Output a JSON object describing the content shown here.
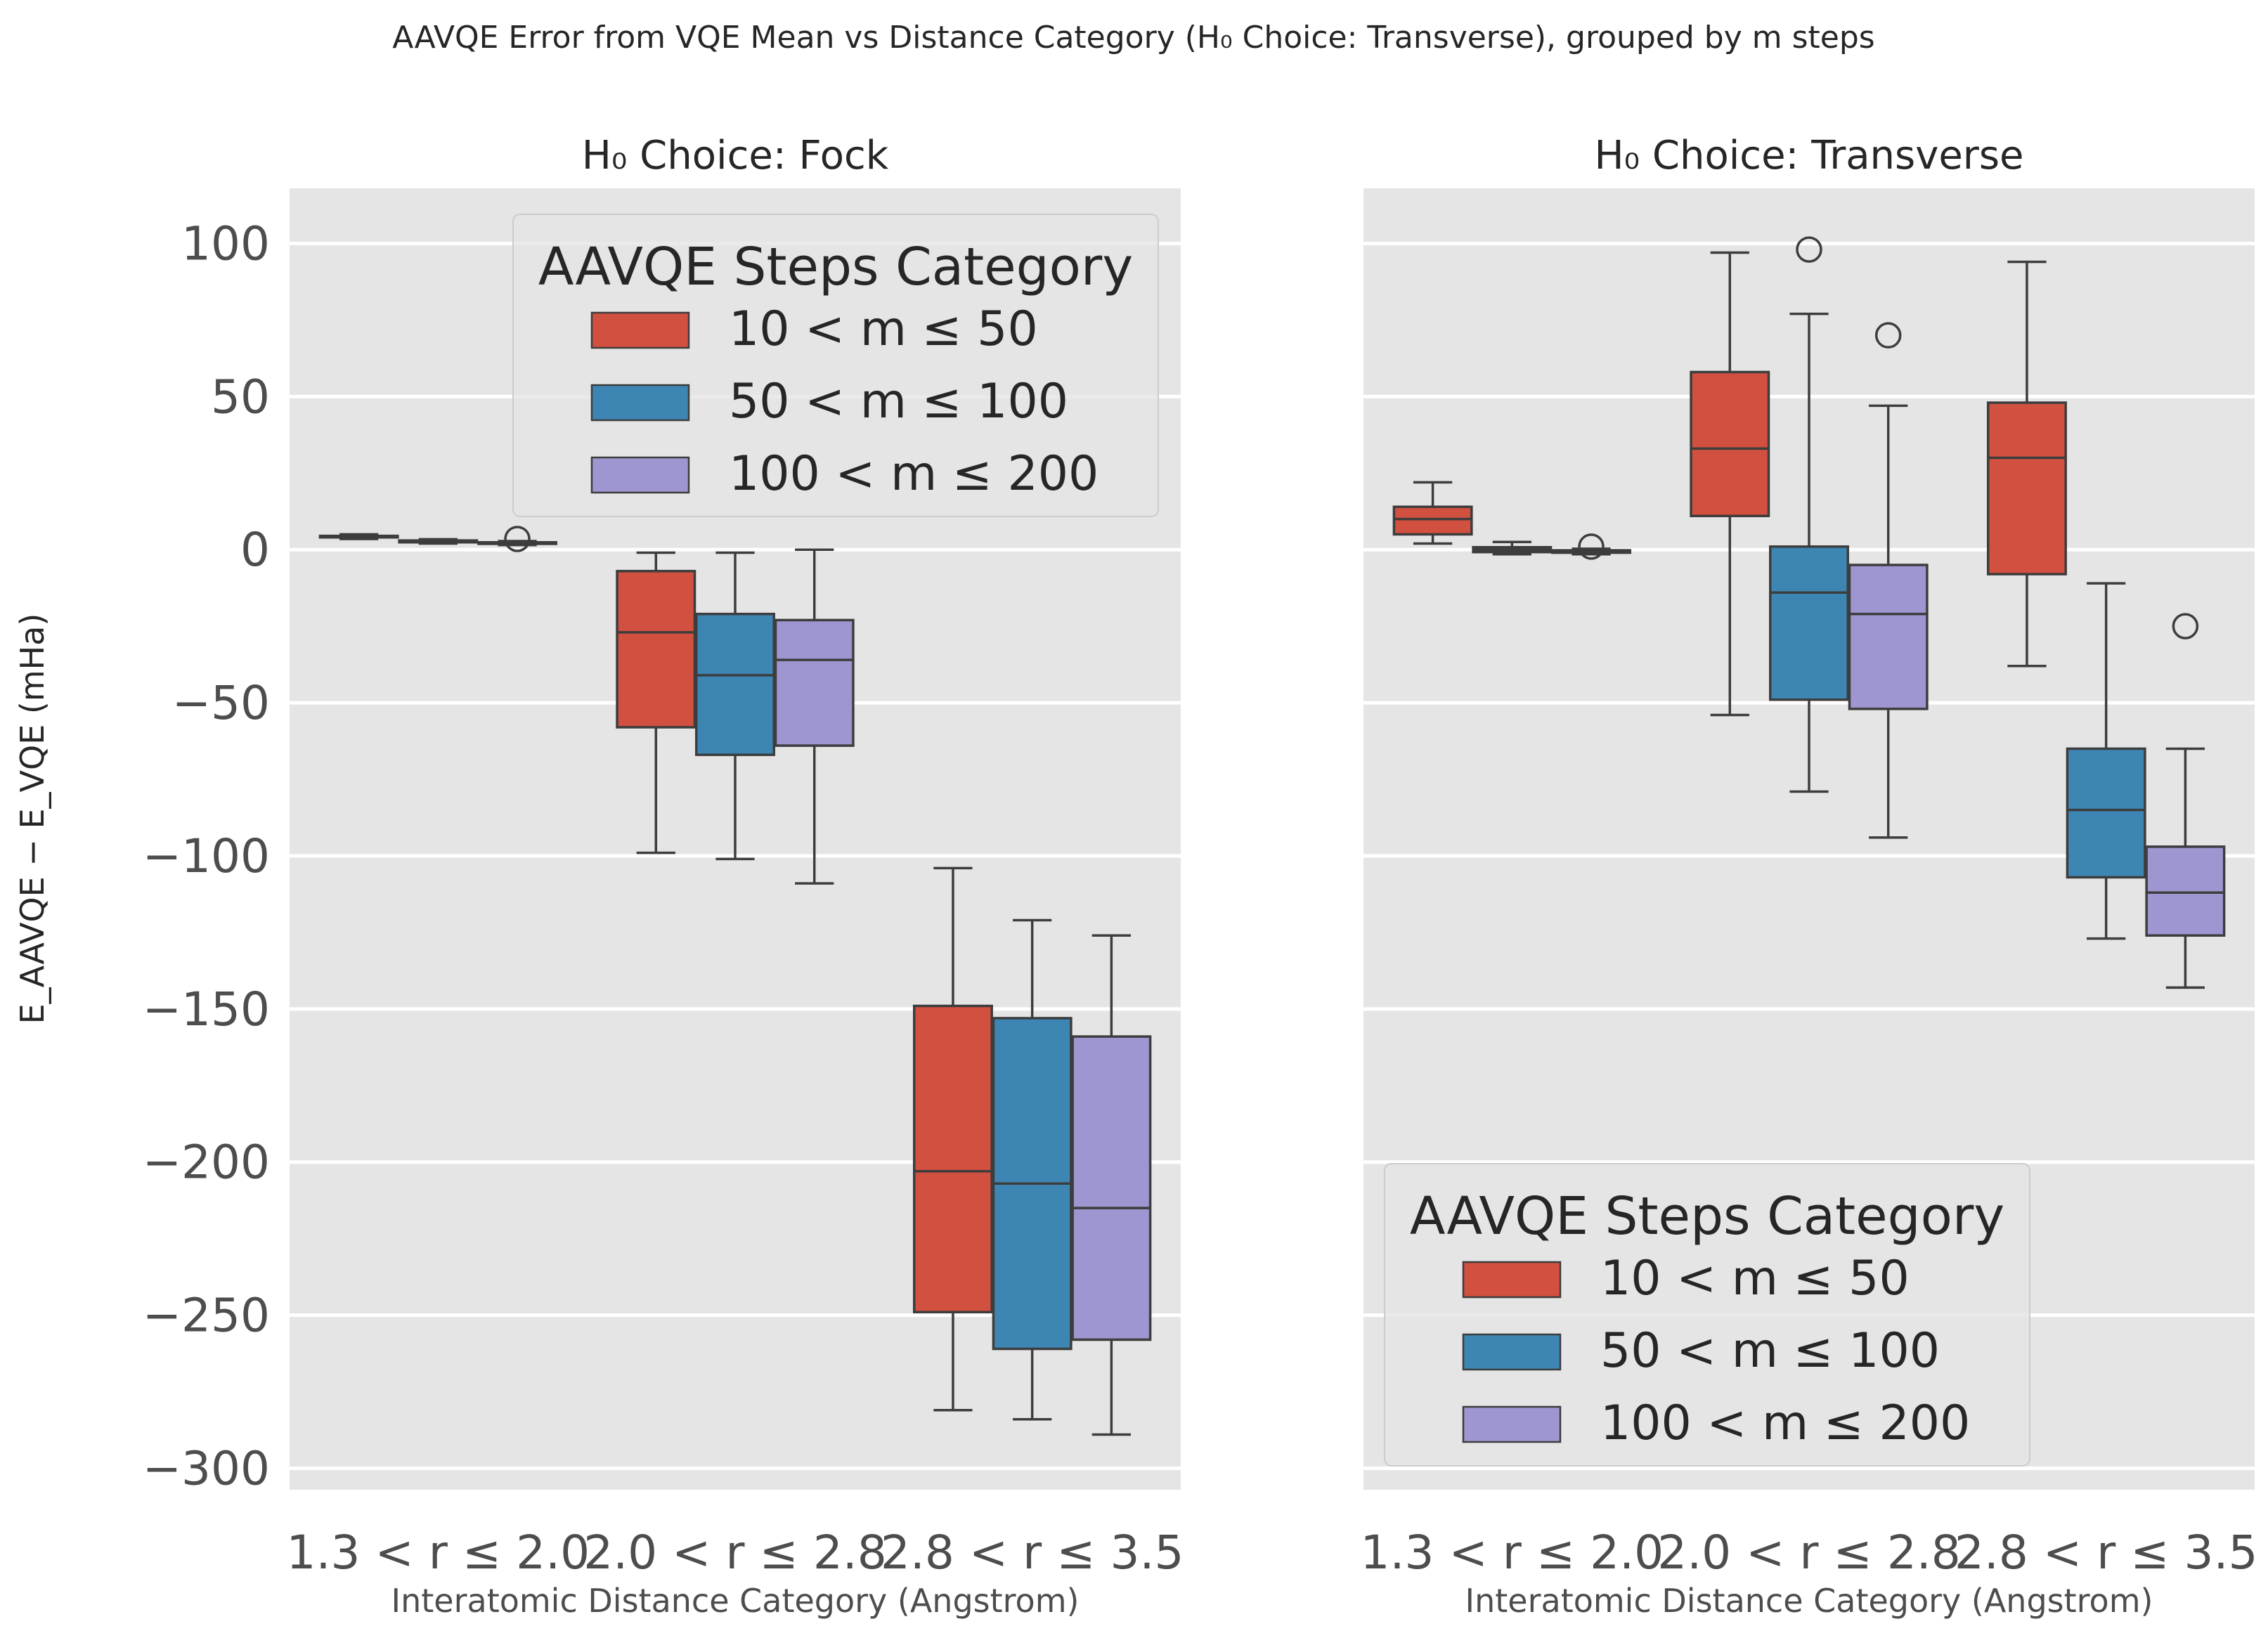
{
  "figure": {
    "suptitle": "AAVQE Error from VQE Mean vs Distance Category (H₀ Choice: Transverse), grouped by m steps",
    "ylabel": "E_AAVQE − E_VQE (mHa)"
  },
  "chart_data": [
    {
      "type": "box",
      "title": "H₀ Choice: Fock",
      "xlabel": "Interatomic Distance Category (Angstrom)",
      "ylabel": "E_AAVQE − E_VQE (mHa)",
      "ylim": [
        -307,
        118
      ],
      "yticks": [
        100,
        50,
        0,
        -50,
        -100,
        -150,
        -200,
        -250,
        -300
      ],
      "ytick_labels": [
        "100",
        "50",
        "0",
        "−50",
        "−100",
        "−150",
        "−200",
        "−250",
        "−300"
      ],
      "categories": [
        "1.3 < r ≤ 2.0",
        "2.0 < r ≤ 2.8",
        "2.8 < r ≤ 3.5"
      ],
      "legend": {
        "title": "AAVQE Steps Category",
        "position": "upper-center"
      },
      "series": [
        {
          "name": "10 < m ≤ 50",
          "color": "#d1503f",
          "boxes": [
            {
              "whislo": 3.5,
              "q1": 4.0,
              "med": 4.2,
              "q3": 4.5,
              "whishi": 5.0,
              "fliers": []
            },
            {
              "whislo": -99,
              "q1": -58,
              "med": -27,
              "q3": -7,
              "whishi": -1,
              "fliers": []
            },
            {
              "whislo": -281,
              "q1": -249,
              "med": -203,
              "q3": -149,
              "whishi": -104,
              "fliers": []
            }
          ]
        },
        {
          "name": "50 < m ≤ 100",
          "color": "#3d86b4",
          "boxes": [
            {
              "whislo": 2.0,
              "q1": 2.4,
              "med": 2.7,
              "q3": 3.0,
              "whishi": 3.4,
              "fliers": []
            },
            {
              "whislo": -101,
              "q1": -67,
              "med": -41,
              "q3": -21,
              "whishi": -1,
              "fliers": []
            },
            {
              "whislo": -284,
              "q1": -261,
              "med": -207,
              "q3": -153,
              "whishi": -121,
              "fliers": []
            }
          ]
        },
        {
          "name": "100 < m ≤ 200",
          "color": "#9d96d1",
          "boxes": [
            {
              "whislo": 1.5,
              "q1": 1.9,
              "med": 2.1,
              "q3": 2.4,
              "whishi": 2.8,
              "fliers": [
                3.5
              ]
            },
            {
              "whislo": -109,
              "q1": -64,
              "med": -36,
              "q3": -23,
              "whishi": 0,
              "fliers": []
            },
            {
              "whislo": -289,
              "q1": -258,
              "med": -215,
              "q3": -159,
              "whishi": -126,
              "fliers": []
            }
          ]
        }
      ]
    },
    {
      "type": "box",
      "title": "H₀ Choice: Transverse",
      "xlabel": "Interatomic Distance Category (Angstrom)",
      "ylim": [
        -307,
        118
      ],
      "categories": [
        "1.3 < r ≤ 2.0",
        "2.0 < r ≤ 2.8",
        "2.8 < r ≤ 3.5"
      ],
      "legend": {
        "title": "AAVQE Steps Category",
        "position": "lower-center"
      },
      "series": [
        {
          "name": "10 < m ≤ 50",
          "color": "#d1503f",
          "boxes": [
            {
              "whislo": 2,
              "q1": 5,
              "med": 10,
              "q3": 14,
              "whishi": 22,
              "fliers": []
            },
            {
              "whislo": -54,
              "q1": 11,
              "med": 33,
              "q3": 58,
              "whishi": 97,
              "fliers": []
            },
            {
              "whislo": -38,
              "q1": -8,
              "med": 30,
              "q3": 48,
              "whishi": 94,
              "fliers": []
            }
          ]
        },
        {
          "name": "50 < m ≤ 100",
          "color": "#3d86b4",
          "boxes": [
            {
              "whislo": -1.5,
              "q1": -0.8,
              "med": 0,
              "q3": 0.8,
              "whishi": 2.5,
              "fliers": []
            },
            {
              "whislo": -79,
              "q1": -49,
              "med": -14,
              "q3": 1,
              "whishi": 77,
              "fliers": [
                98
              ]
            },
            {
              "whislo": -127,
              "q1": -107,
              "med": -85,
              "q3": -65,
              "whishi": -11,
              "fliers": []
            }
          ]
        },
        {
          "name": "100 < m ≤ 200",
          "color": "#9d96d1",
          "boxes": [
            {
              "whislo": -1.5,
              "q1": -1.0,
              "med": -0.6,
              "q3": -0.2,
              "whishi": 0.3,
              "fliers": [
                1
              ]
            },
            {
              "whislo": -94,
              "q1": -52,
              "med": -21,
              "q3": -5,
              "whishi": 47,
              "fliers": [
                70
              ]
            },
            {
              "whislo": -143,
              "q1": -126,
              "med": -112,
              "q3": -97,
              "whishi": -65,
              "fliers": [
                -25
              ]
            }
          ]
        }
      ]
    }
  ]
}
